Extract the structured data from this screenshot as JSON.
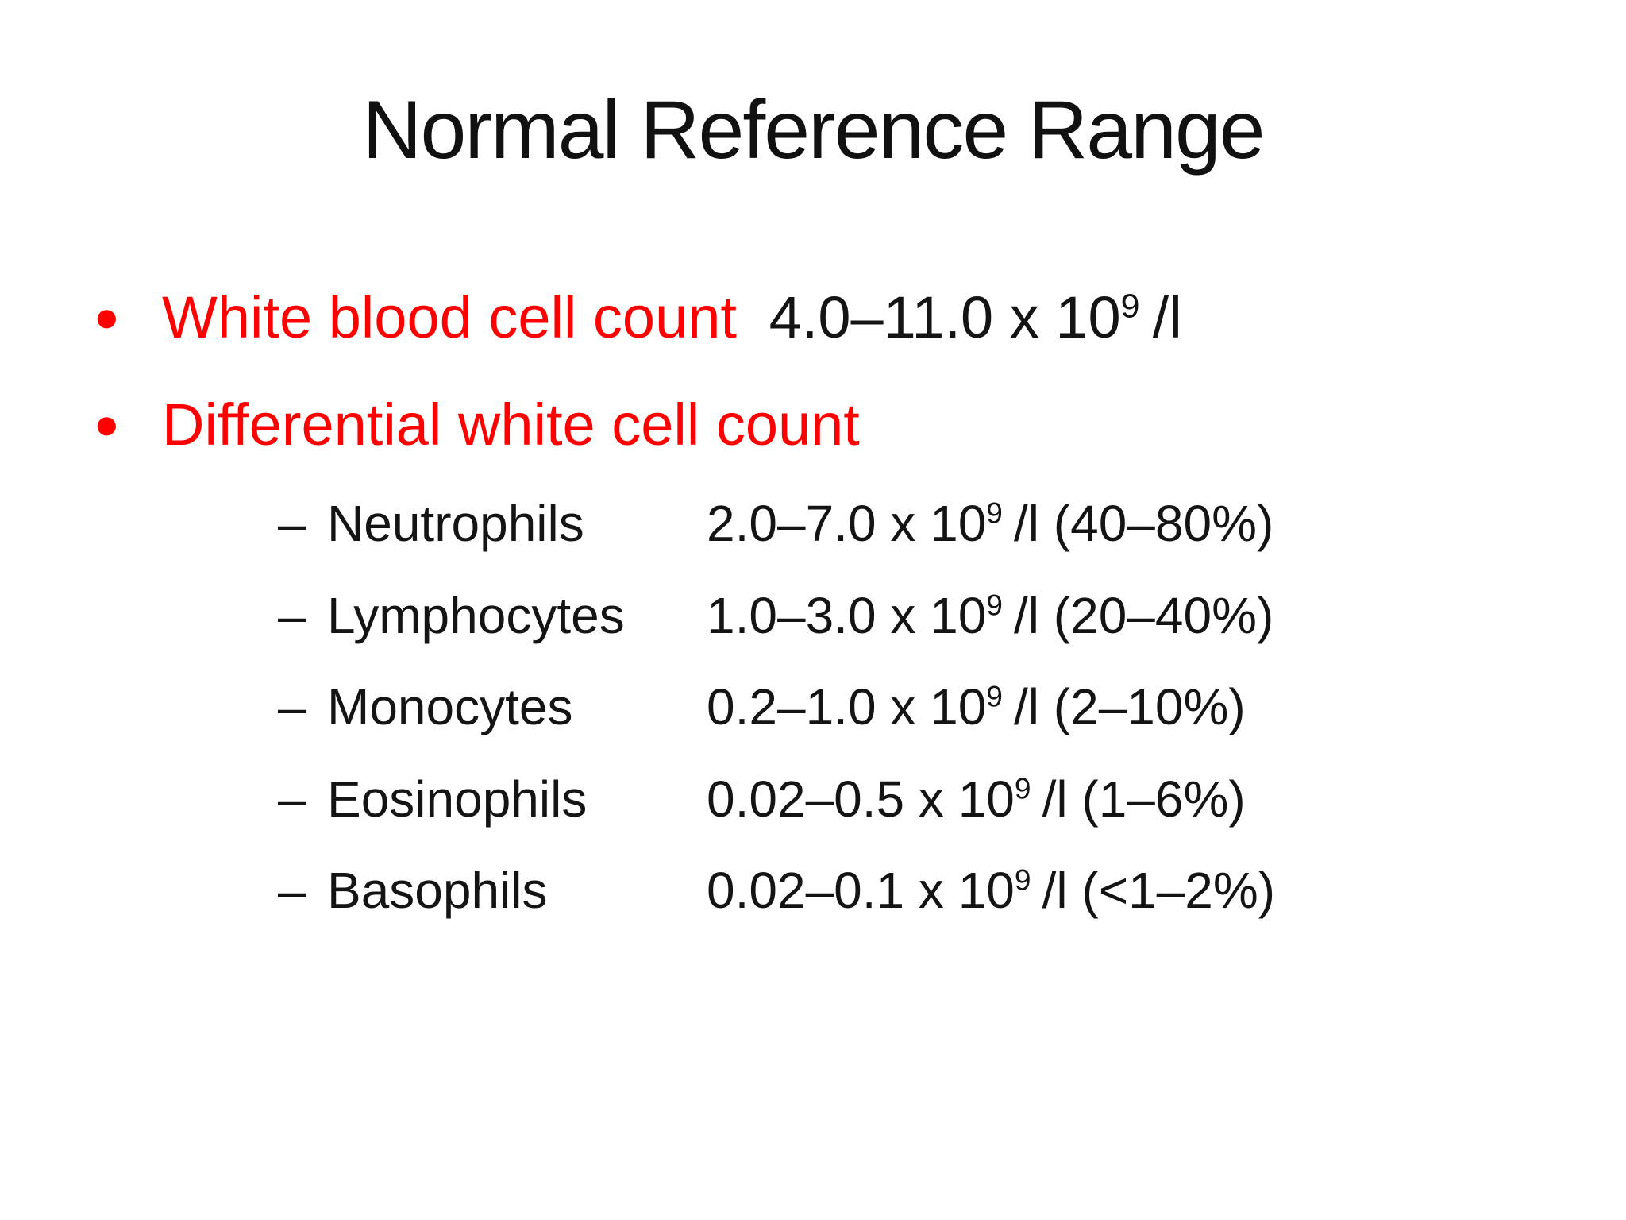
{
  "slide": {
    "title": "Normal Reference Range",
    "colors": {
      "accent_red": "#ff0000",
      "text_black": "#141414",
      "background": "#ffffff"
    },
    "bullet_glyph": "●",
    "dash_glyph": "–",
    "bullets": [
      {
        "label": "White blood cell count",
        "value_pre": "4.0–11.0 x 10",
        "value_exp": "9",
        "value_post": "/l"
      },
      {
        "label": "Differential white cell count"
      }
    ],
    "sub_bullets": [
      {
        "name": "Neutrophils",
        "range": "2.0–7.0 x 10",
        "exp": "9",
        "unit": "/l (40–80%)"
      },
      {
        "name": "Lymphocytes",
        "range": "1.0–3.0 x 10",
        "exp": "9",
        "unit": "/l (20–40%)"
      },
      {
        "name": "Monocytes",
        "range": "0.2–1.0 x 10",
        "exp": "9",
        "unit": "/l (2–10%)"
      },
      {
        "name": "Eosinophils",
        "range": "0.02–0.5 x 10",
        "exp": "9",
        "unit": "/l (1–6%)"
      },
      {
        "name": "Basophils",
        "range": "0.02–0.1 x 10",
        "exp": "9",
        "unit": "/l (<1–2%)"
      }
    ]
  }
}
